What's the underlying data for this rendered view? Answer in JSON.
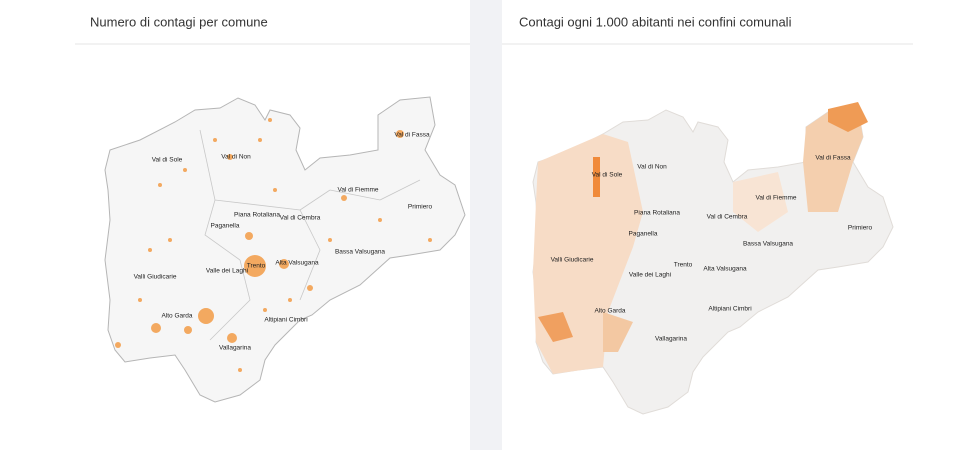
{
  "left_panel": {
    "title": "Numero di contagi per comune"
  },
  "right_panel": {
    "title": "Contagi ogni 1.000 abitanti nei confini comunali"
  },
  "map_labels": [
    "Val di Sole",
    "Val di Non",
    "Val di Fassa",
    "Val di Fiemme",
    "Primiero",
    "Piana Rotaliana",
    "Val di Cembra",
    "Paganella",
    "Valle dei Laghi",
    "Trento",
    "Alta Valsugana",
    "Bassa Valsugana",
    "Valli Giudicarie",
    "Alto Garda",
    "Altipiani Cimbri",
    "Vallagarina"
  ]
}
